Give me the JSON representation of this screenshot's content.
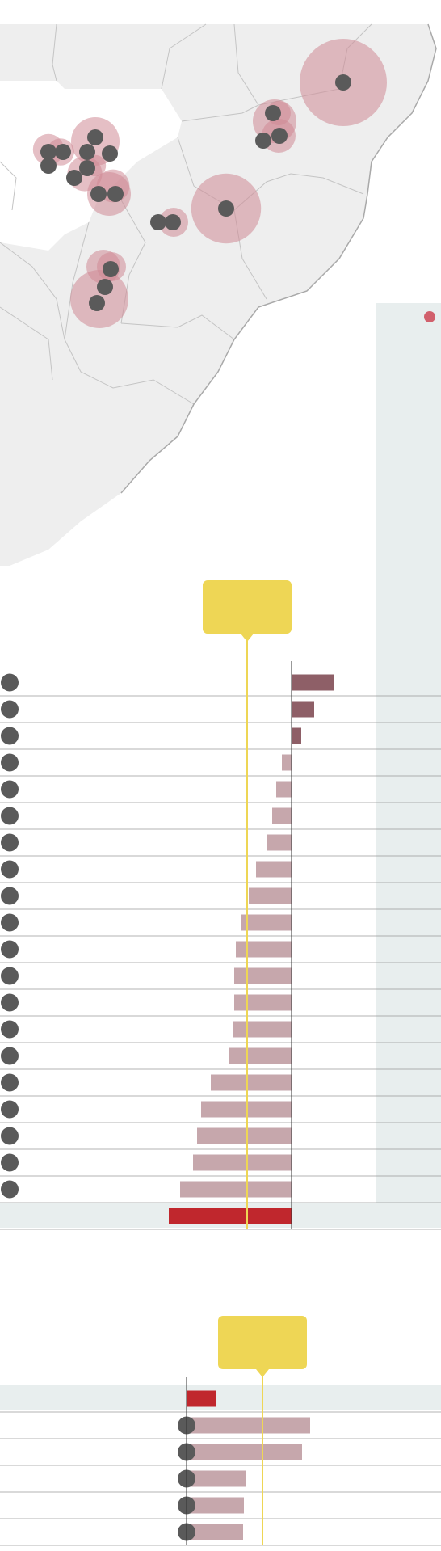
{
  "colors": {
    "map_land": "#eeeeee",
    "map_highlight_region": "#ffffff",
    "map_border": "#c4c4c4",
    "map_coast": "#a9a9a9",
    "bubble_fill": "#cf8b96",
    "marker": "#5a5a5a",
    "accent_yellow": "#eed655",
    "highlight_red": "#c0272d",
    "positive_bar": "#8e5f67",
    "negative_bar": "#c6a7ac",
    "panel_shade": "#e8eeee",
    "row_rule": "#9a9a9a"
  },
  "map": {
    "legend_dot_color": "#d1606c",
    "bubbles": [
      {
        "id": "b1",
        "size": 0.9
      },
      {
        "id": "b2",
        "size": 0.45
      },
      {
        "id": "b3",
        "size": 0.35
      },
      {
        "id": "b4",
        "size": 0.5
      },
      {
        "id": "b5",
        "size": 0.32
      },
      {
        "id": "b6",
        "size": 0.28
      },
      {
        "id": "b7",
        "size": 0.3
      },
      {
        "id": "b8",
        "size": 0.34
      },
      {
        "id": "b9",
        "size": 0.72
      },
      {
        "id": "b10",
        "size": 0.35
      },
      {
        "id": "b11",
        "size": 0.6
      },
      {
        "id": "b12",
        "size": 0.25
      },
      {
        "id": "b13",
        "size": 0.22
      },
      {
        "id": "b14",
        "size": 0.36
      },
      {
        "id": "b15",
        "size": 0.3
      },
      {
        "id": "b16",
        "size": 0.45
      }
    ]
  },
  "chart_data": [
    {
      "type": "bar",
      "orientation": "horizontal",
      "title": "",
      "xlabel": "",
      "ylabel": "",
      "reference_value": -5.5,
      "rows": [
        {
          "value": 5.2,
          "kind": "positive"
        },
        {
          "value": 2.8,
          "kind": "positive"
        },
        {
          "value": 1.2,
          "kind": "positive"
        },
        {
          "value": -1.2,
          "kind": "negative"
        },
        {
          "value": -1.9,
          "kind": "negative"
        },
        {
          "value": -2.4,
          "kind": "negative"
        },
        {
          "value": -3.0,
          "kind": "negative"
        },
        {
          "value": -4.4,
          "kind": "negative"
        },
        {
          "value": -5.3,
          "kind": "negative"
        },
        {
          "value": -6.3,
          "kind": "negative"
        },
        {
          "value": -6.9,
          "kind": "negative"
        },
        {
          "value": -7.1,
          "kind": "negative"
        },
        {
          "value": -7.1,
          "kind": "negative"
        },
        {
          "value": -7.3,
          "kind": "negative"
        },
        {
          "value": -7.8,
          "kind": "negative"
        },
        {
          "value": -10.0,
          "kind": "negative"
        },
        {
          "value": -11.2,
          "kind": "negative"
        },
        {
          "value": -11.7,
          "kind": "negative"
        },
        {
          "value": -12.2,
          "kind": "negative"
        },
        {
          "value": -13.8,
          "kind": "negative"
        },
        {
          "value": -15.2,
          "kind": "highlight"
        }
      ]
    },
    {
      "type": "bar",
      "orientation": "horizontal",
      "title": "",
      "xlabel": "",
      "ylabel": "",
      "reference_value": 9.4,
      "rows": [
        {
          "value": 3.6,
          "kind": "highlight"
        },
        {
          "value": 15.3,
          "kind": "negative"
        },
        {
          "value": 14.3,
          "kind": "negative"
        },
        {
          "value": 7.4,
          "kind": "negative"
        },
        {
          "value": 7.1,
          "kind": "negative"
        },
        {
          "value": 7.0,
          "kind": "negative"
        }
      ]
    }
  ]
}
